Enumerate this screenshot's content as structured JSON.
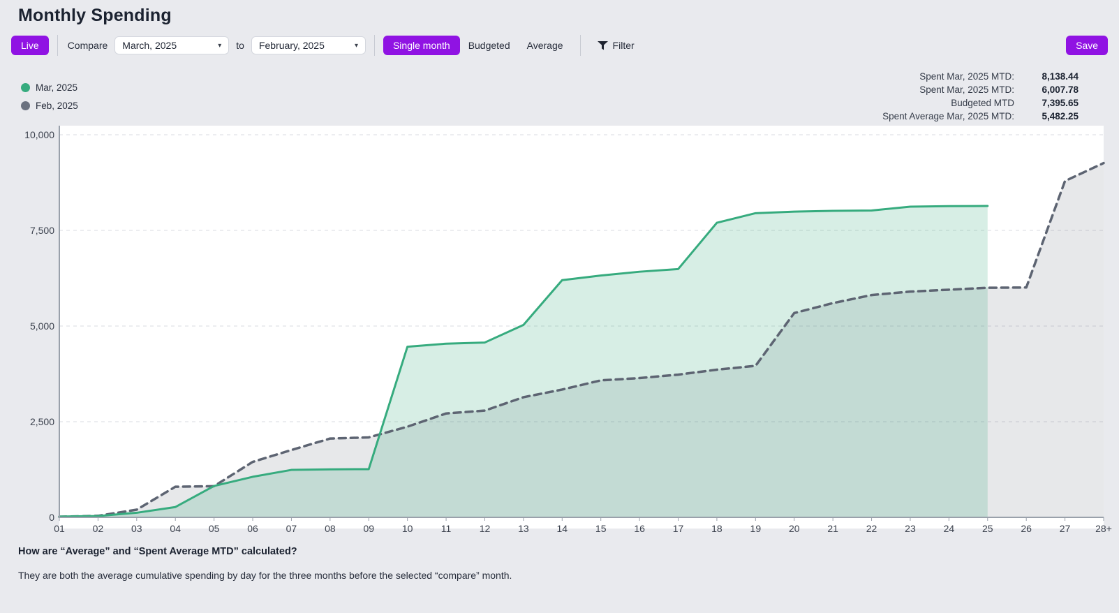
{
  "page": {
    "title": "Monthly Spending"
  },
  "toolbar": {
    "live_label": "Live",
    "compare_label": "Compare",
    "month_from": "March, 2025",
    "to_label": "to",
    "month_to": "February, 2025",
    "single_month_label": "Single month",
    "budgeted_label": "Budgeted",
    "average_label": "Average",
    "filter_label": "Filter",
    "save_label": "Save"
  },
  "legend": [
    {
      "label": "Mar, 2025",
      "color": "#36ab7e"
    },
    {
      "label": "Feb, 2025",
      "color": "#6b7280"
    }
  ],
  "stats": [
    {
      "label": "Spent Mar, 2025 MTD:",
      "value": "8,138.44"
    },
    {
      "label": "Spent Mar, 2025 MTD:",
      "value": "6,007.78"
    },
    {
      "label": "Budgeted MTD",
      "value": "7,395.65"
    },
    {
      "label": "Spent Average Mar, 2025 MTD:",
      "value": "5,482.25"
    }
  ],
  "chart_data": {
    "type": "area",
    "title": "",
    "xlabel": "",
    "ylabel": "",
    "grid": true,
    "legend_position": "top-left",
    "ylim": [
      0,
      10000
    ],
    "y_ticks": [
      0,
      2500,
      5000,
      7500,
      10000
    ],
    "y_tick_labels": [
      "0",
      "2,500",
      "5,000",
      "7,500",
      "10,000"
    ],
    "x_labels": [
      "01",
      "02",
      "03",
      "04",
      "05",
      "06",
      "07",
      "08",
      "09",
      "10",
      "11",
      "12",
      "13",
      "14",
      "15",
      "16",
      "17",
      "18",
      "19",
      "20",
      "21",
      "22",
      "23",
      "24",
      "25",
      "26",
      "27",
      "28+"
    ],
    "series": [
      {
        "name": "Feb, 2025",
        "style": "dashed",
        "color": "#5d6472",
        "fill": "rgba(104,110,122,0.16)",
        "values": [
          15,
          40,
          200,
          800,
          815,
          1450,
          1760,
          2060,
          2090,
          2370,
          2715,
          2790,
          3140,
          3340,
          3580,
          3640,
          3730,
          3860,
          3960,
          5340,
          5600,
          5810,
          5900,
          5950,
          6000,
          6008,
          8790,
          9260
        ]
      },
      {
        "name": "Mar, 2025",
        "style": "solid",
        "color": "#36ab7e",
        "fill": "rgba(54,171,126,0.20)",
        "values": [
          20,
          35,
          120,
          270,
          820,
          1060,
          1240,
          1255,
          1260,
          4460,
          4540,
          4570,
          5030,
          6200,
          6320,
          6420,
          6490,
          7700,
          7950,
          7990,
          8010,
          8020,
          8120,
          8135,
          8138.44
        ]
      }
    ]
  },
  "footer": {
    "question": "How are “Average” and “Spent Average MTD” calculated?",
    "answer": "They are both the average cumulative spending by day for the three months before the selected “compare” month."
  }
}
